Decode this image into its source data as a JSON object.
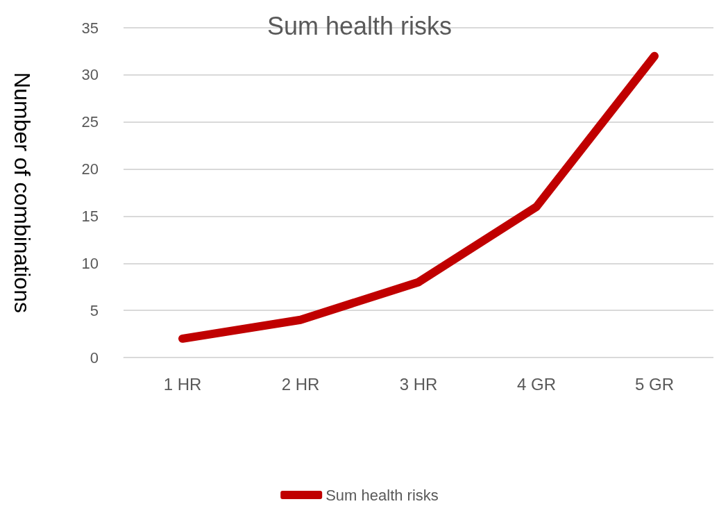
{
  "chart_data": {
    "type": "line",
    "title": "Sum health risks",
    "ylabel": "Number of combinations",
    "categories": [
      "1 HR",
      "2 HR",
      "3 HR",
      "4 GR",
      "5 GR"
    ],
    "series": [
      {
        "name": "Sum health risks",
        "color": "#c00000",
        "values": [
          2,
          4,
          8,
          16,
          32
        ]
      }
    ],
    "ylim": [
      0,
      35
    ],
    "yticks": [
      0,
      5,
      10,
      15,
      20,
      25,
      30,
      35
    ],
    "grid": "y",
    "legend": "bottom",
    "line_style": "solid"
  }
}
